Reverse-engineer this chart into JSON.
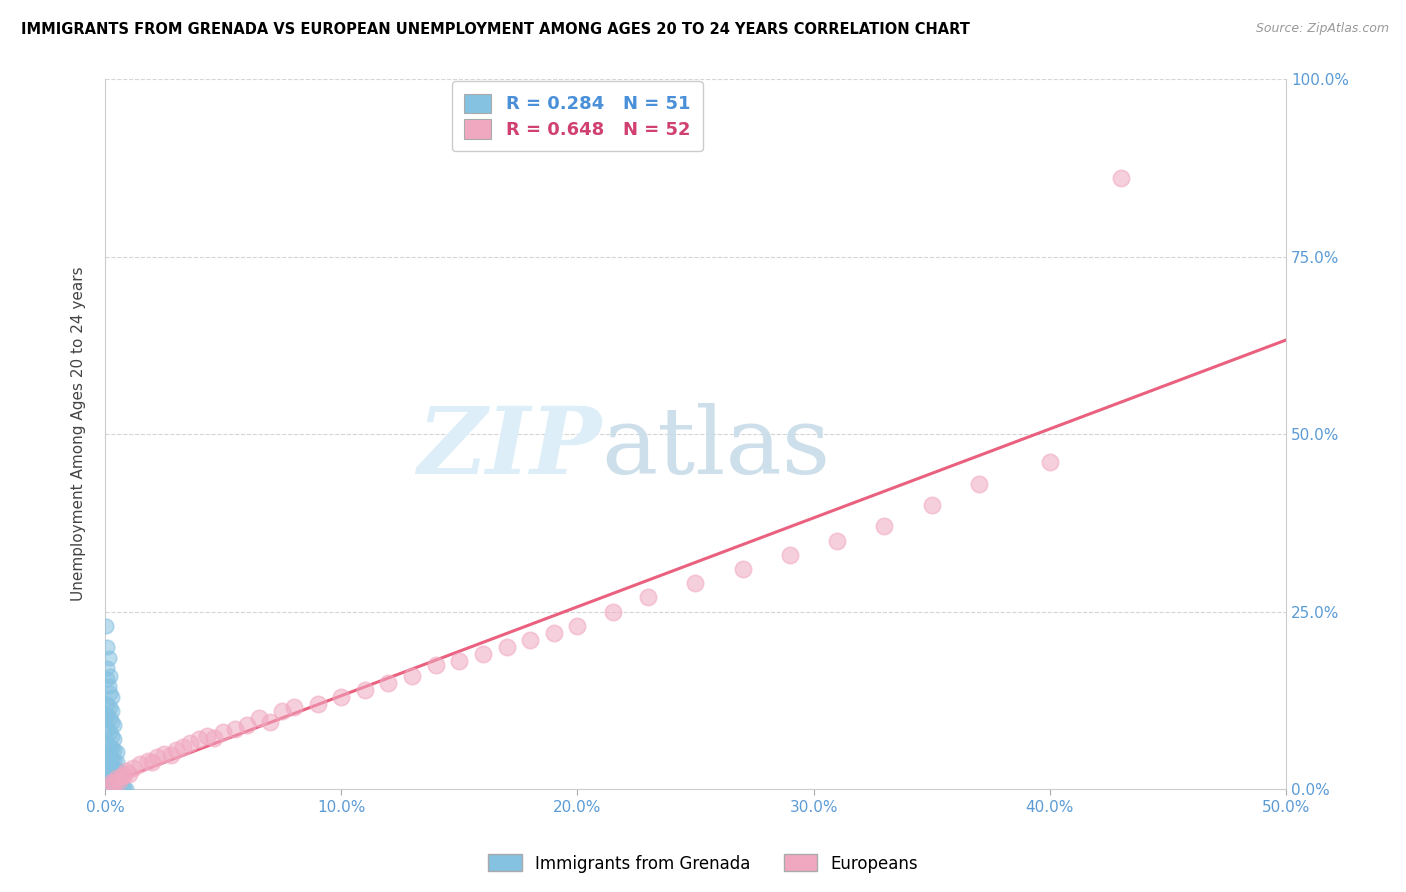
{
  "title": "IMMIGRANTS FROM GRENADA VS EUROPEAN UNEMPLOYMENT AMONG AGES 20 TO 24 YEARS CORRELATION CHART",
  "source": "Source: ZipAtlas.com",
  "ylabel_label": "Unemployment Among Ages 20 to 24 years",
  "legend_label1": "Immigrants from Grenada",
  "legend_label2": "Europeans",
  "R1": 0.284,
  "N1": 51,
  "R2": 0.648,
  "N2": 52,
  "xlim": [
    0.0,
    0.5
  ],
  "ylim": [
    0.0,
    1.0
  ],
  "color_blue": "#85c1e0",
  "color_pink": "#f0a8c0",
  "color_blue_line": "#88b8d8",
  "color_pink_line": "#e85878",
  "grenada_points": [
    [
      0.0005,
      0.23
    ],
    [
      0.001,
      0.2
    ],
    [
      0.0015,
      0.185
    ],
    [
      0.001,
      0.17
    ],
    [
      0.002,
      0.16
    ],
    [
      0.0008,
      0.155
    ],
    [
      0.0015,
      0.145
    ],
    [
      0.002,
      0.135
    ],
    [
      0.003,
      0.13
    ],
    [
      0.001,
      0.12
    ],
    [
      0.002,
      0.115
    ],
    [
      0.003,
      0.11
    ],
    [
      0.001,
      0.105
    ],
    [
      0.002,
      0.1
    ],
    [
      0.003,
      0.095
    ],
    [
      0.004,
      0.09
    ],
    [
      0.001,
      0.085
    ],
    [
      0.002,
      0.08
    ],
    [
      0.003,
      0.075
    ],
    [
      0.004,
      0.07
    ],
    [
      0.001,
      0.065
    ],
    [
      0.002,
      0.06
    ],
    [
      0.003,
      0.058
    ],
    [
      0.004,
      0.055
    ],
    [
      0.005,
      0.052
    ],
    [
      0.001,
      0.048
    ],
    [
      0.002,
      0.045
    ],
    [
      0.003,
      0.042
    ],
    [
      0.004,
      0.04
    ],
    [
      0.005,
      0.038
    ],
    [
      0.001,
      0.035
    ],
    [
      0.002,
      0.033
    ],
    [
      0.003,
      0.03
    ],
    [
      0.004,
      0.028
    ],
    [
      0.005,
      0.026
    ],
    [
      0.006,
      0.025
    ],
    [
      0.001,
      0.022
    ],
    [
      0.002,
      0.02
    ],
    [
      0.003,
      0.018
    ],
    [
      0.004,
      0.016
    ],
    [
      0.005,
      0.015
    ],
    [
      0.006,
      0.013
    ],
    [
      0.001,
      0.01
    ],
    [
      0.002,
      0.008
    ],
    [
      0.003,
      0.006
    ],
    [
      0.004,
      0.005
    ],
    [
      0.005,
      0.004
    ],
    [
      0.006,
      0.003
    ],
    [
      0.007,
      0.002
    ],
    [
      0.008,
      0.001
    ],
    [
      0.009,
      0.0
    ]
  ],
  "european_points": [
    [
      0.002,
      0.005
    ],
    [
      0.003,
      0.01
    ],
    [
      0.004,
      0.008
    ],
    [
      0.005,
      0.015
    ],
    [
      0.006,
      0.012
    ],
    [
      0.007,
      0.018
    ],
    [
      0.008,
      0.02
    ],
    [
      0.009,
      0.025
    ],
    [
      0.01,
      0.022
    ],
    [
      0.012,
      0.03
    ],
    [
      0.015,
      0.035
    ],
    [
      0.018,
      0.04
    ],
    [
      0.02,
      0.038
    ],
    [
      0.022,
      0.045
    ],
    [
      0.025,
      0.05
    ],
    [
      0.028,
      0.048
    ],
    [
      0.03,
      0.055
    ],
    [
      0.033,
      0.06
    ],
    [
      0.036,
      0.065
    ],
    [
      0.04,
      0.07
    ],
    [
      0.043,
      0.075
    ],
    [
      0.046,
      0.072
    ],
    [
      0.05,
      0.08
    ],
    [
      0.055,
      0.085
    ],
    [
      0.06,
      0.09
    ],
    [
      0.065,
      0.1
    ],
    [
      0.07,
      0.095
    ],
    [
      0.075,
      0.11
    ],
    [
      0.08,
      0.115
    ],
    [
      0.09,
      0.12
    ],
    [
      0.1,
      0.13
    ],
    [
      0.11,
      0.14
    ],
    [
      0.12,
      0.15
    ],
    [
      0.13,
      0.16
    ],
    [
      0.14,
      0.175
    ],
    [
      0.15,
      0.18
    ],
    [
      0.16,
      0.19
    ],
    [
      0.17,
      0.2
    ],
    [
      0.18,
      0.21
    ],
    [
      0.19,
      0.22
    ],
    [
      0.2,
      0.23
    ],
    [
      0.215,
      0.25
    ],
    [
      0.23,
      0.27
    ],
    [
      0.25,
      0.29
    ],
    [
      0.27,
      0.31
    ],
    [
      0.29,
      0.33
    ],
    [
      0.31,
      0.35
    ],
    [
      0.33,
      0.37
    ],
    [
      0.35,
      0.4
    ],
    [
      0.37,
      0.43
    ],
    [
      0.4,
      0.46
    ],
    [
      0.43,
      0.86
    ]
  ]
}
